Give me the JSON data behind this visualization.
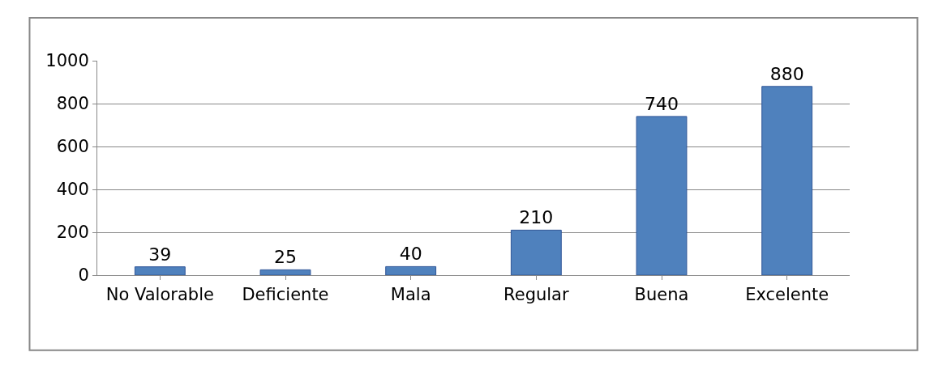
{
  "chart_data": {
    "type": "bar",
    "categories": [
      "No Valorable",
      "Deficiente",
      "Mala",
      "Regular",
      "Buena",
      "Excelente"
    ],
    "values": [
      39,
      25,
      40,
      210,
      740,
      880
    ],
    "color": "#4f81bd",
    "ylim": [
      0,
      1000
    ],
    "yticks": [
      0,
      200,
      400,
      600,
      800,
      1000
    ],
    "grid": "y",
    "data_labels": true,
    "legend": false
  }
}
